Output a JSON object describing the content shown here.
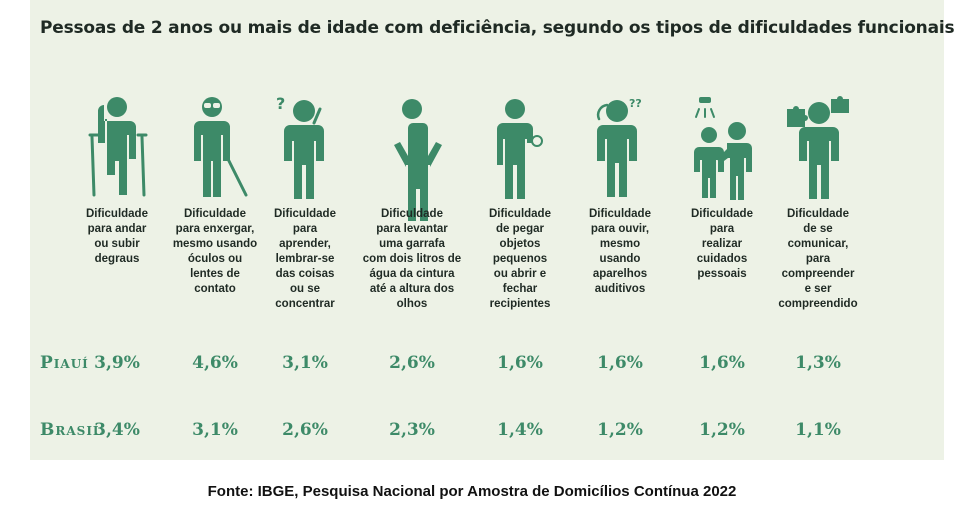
{
  "chart_data": {
    "type": "table",
    "title": "Pessoas de 2 anos ou mais de idade com deficiência, segundo os tipos de dificuldades funcionais",
    "categories": [
      "Dificuldade para andar ou subir degraus",
      "Dificuldade para enxergar, mesmo usando óculos ou lentes de contato",
      "Dificuldade para aprender, lembrar-se das coisas ou se concentrar",
      "Dificuldade para levantar uma garrafa com dois litros de água da cintura até a altura dos olhos",
      "Dificuldade de pegar objetos pequenos ou abrir e fechar recipientes",
      "Dificuldade para ouvir, mesmo usando aparelhos auditivos",
      "Dificuldade para realizar cuidados pessoais",
      "Dificuldade de se comunicar, para compreender e ser compreendido"
    ],
    "series": [
      {
        "name": "Piauí",
        "values": [
          3.9,
          4.6,
          3.1,
          2.6,
          1.6,
          1.6,
          1.6,
          1.3
        ],
        "labels": [
          "3,9%",
          "4,6%",
          "3,1%",
          "2,6%",
          "1,6%",
          "1,6%",
          "1,6%",
          "1,3%"
        ]
      },
      {
        "name": "Brasil",
        "values": [
          3.4,
          3.1,
          2.6,
          2.3,
          1.4,
          1.2,
          1.2,
          1.1
        ],
        "labels": [
          "3,4%",
          "3,1%",
          "2,6%",
          "2,3%",
          "1,4%",
          "1,2%",
          "1,2%",
          "1,1%"
        ]
      }
    ],
    "unit": "%"
  },
  "label_lines": [
    [
      "Dificuldade",
      "para andar",
      "ou subir",
      "degraus"
    ],
    [
      "Dificuldade",
      "para enxergar,",
      "mesmo usando",
      "óculos ou",
      "lentes de",
      "contato"
    ],
    [
      "Dificuldade",
      "para",
      "aprender,",
      "lembrar-se",
      "das  coisas",
      "ou se",
      "concentrar"
    ],
    [
      "Dificuldade",
      "para levantar",
      "uma garrafa",
      "com dois litros de",
      "água da cintura",
      "até a altura dos",
      "olhos"
    ],
    [
      "Dificuldade",
      "de pegar",
      "objetos",
      "pequenos",
      "ou abrir e",
      "fechar",
      "recipientes"
    ],
    [
      "Dificuldade",
      "para ouvir,",
      "mesmo",
      "usando",
      "aparelhos",
      "auditivos"
    ],
    [
      "Dificuldade",
      "para",
      "realizar",
      "cuidados",
      "pessoais"
    ],
    [
      "Dificuldade",
      "de se",
      "comunicar,",
      "para",
      "compreender",
      "e ser",
      "compreendido"
    ]
  ],
  "icons": [
    "walking-crutches-icon",
    "blind-cane-icon",
    "confused-learning-icon",
    "lifting-arms-icon",
    "hand-grip-icon",
    "hearing-aid-icon",
    "personal-care-icon",
    "communication-puzzle-icon"
  ],
  "colors": {
    "accent": "#3d8a68",
    "panel": "#edf2e6",
    "text": "#1f2a24"
  },
  "source": "Fonte: IBGE, Pesquisa Nacional por Amostra de Domicílios Contínua 2022"
}
